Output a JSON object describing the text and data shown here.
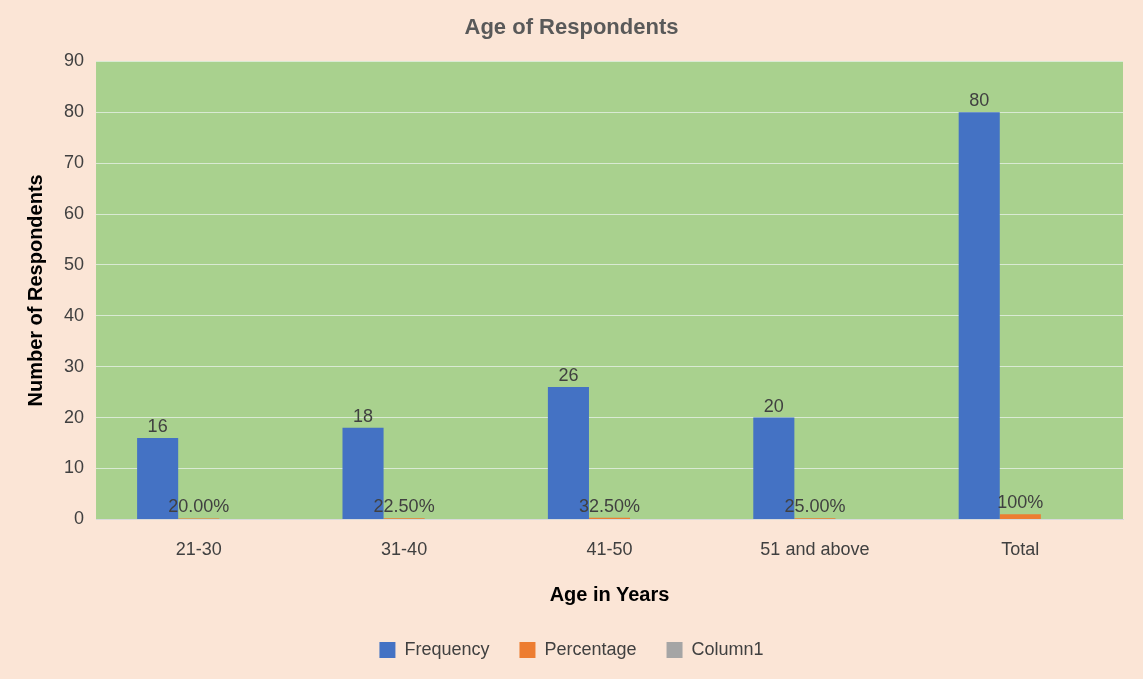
{
  "chart_data": {
    "type": "bar",
    "title": "Age of Respondents",
    "xlabel": "Age in Years",
    "ylabel": "Number of Respondents",
    "categories": [
      "21-30",
      "31-40",
      "41-50",
      "51 and above",
      "Total"
    ],
    "series": [
      {
        "name": "Frequency",
        "color": "#4472c4",
        "values": [
          16,
          18,
          26,
          20,
          80
        ],
        "value_labels": [
          "16",
          "18",
          "26",
          "20",
          "80"
        ]
      },
      {
        "name": "Percentage",
        "color": "#ed7d31",
        "values": [
          0.2,
          0.225,
          0.325,
          0.25,
          1
        ],
        "value_labels": [
          "20.00%",
          "22.50%",
          "32.50%",
          "25.00%",
          "100%"
        ]
      },
      {
        "name": "Column1",
        "color": "#a5a5a5",
        "values": [
          null,
          null,
          null,
          null,
          null
        ]
      }
    ],
    "ylim": [
      0,
      90
    ],
    "yticks": [
      0,
      10,
      20,
      30,
      40,
      50,
      60,
      70,
      80,
      90
    ],
    "grid": "y",
    "legend": "bottom"
  }
}
